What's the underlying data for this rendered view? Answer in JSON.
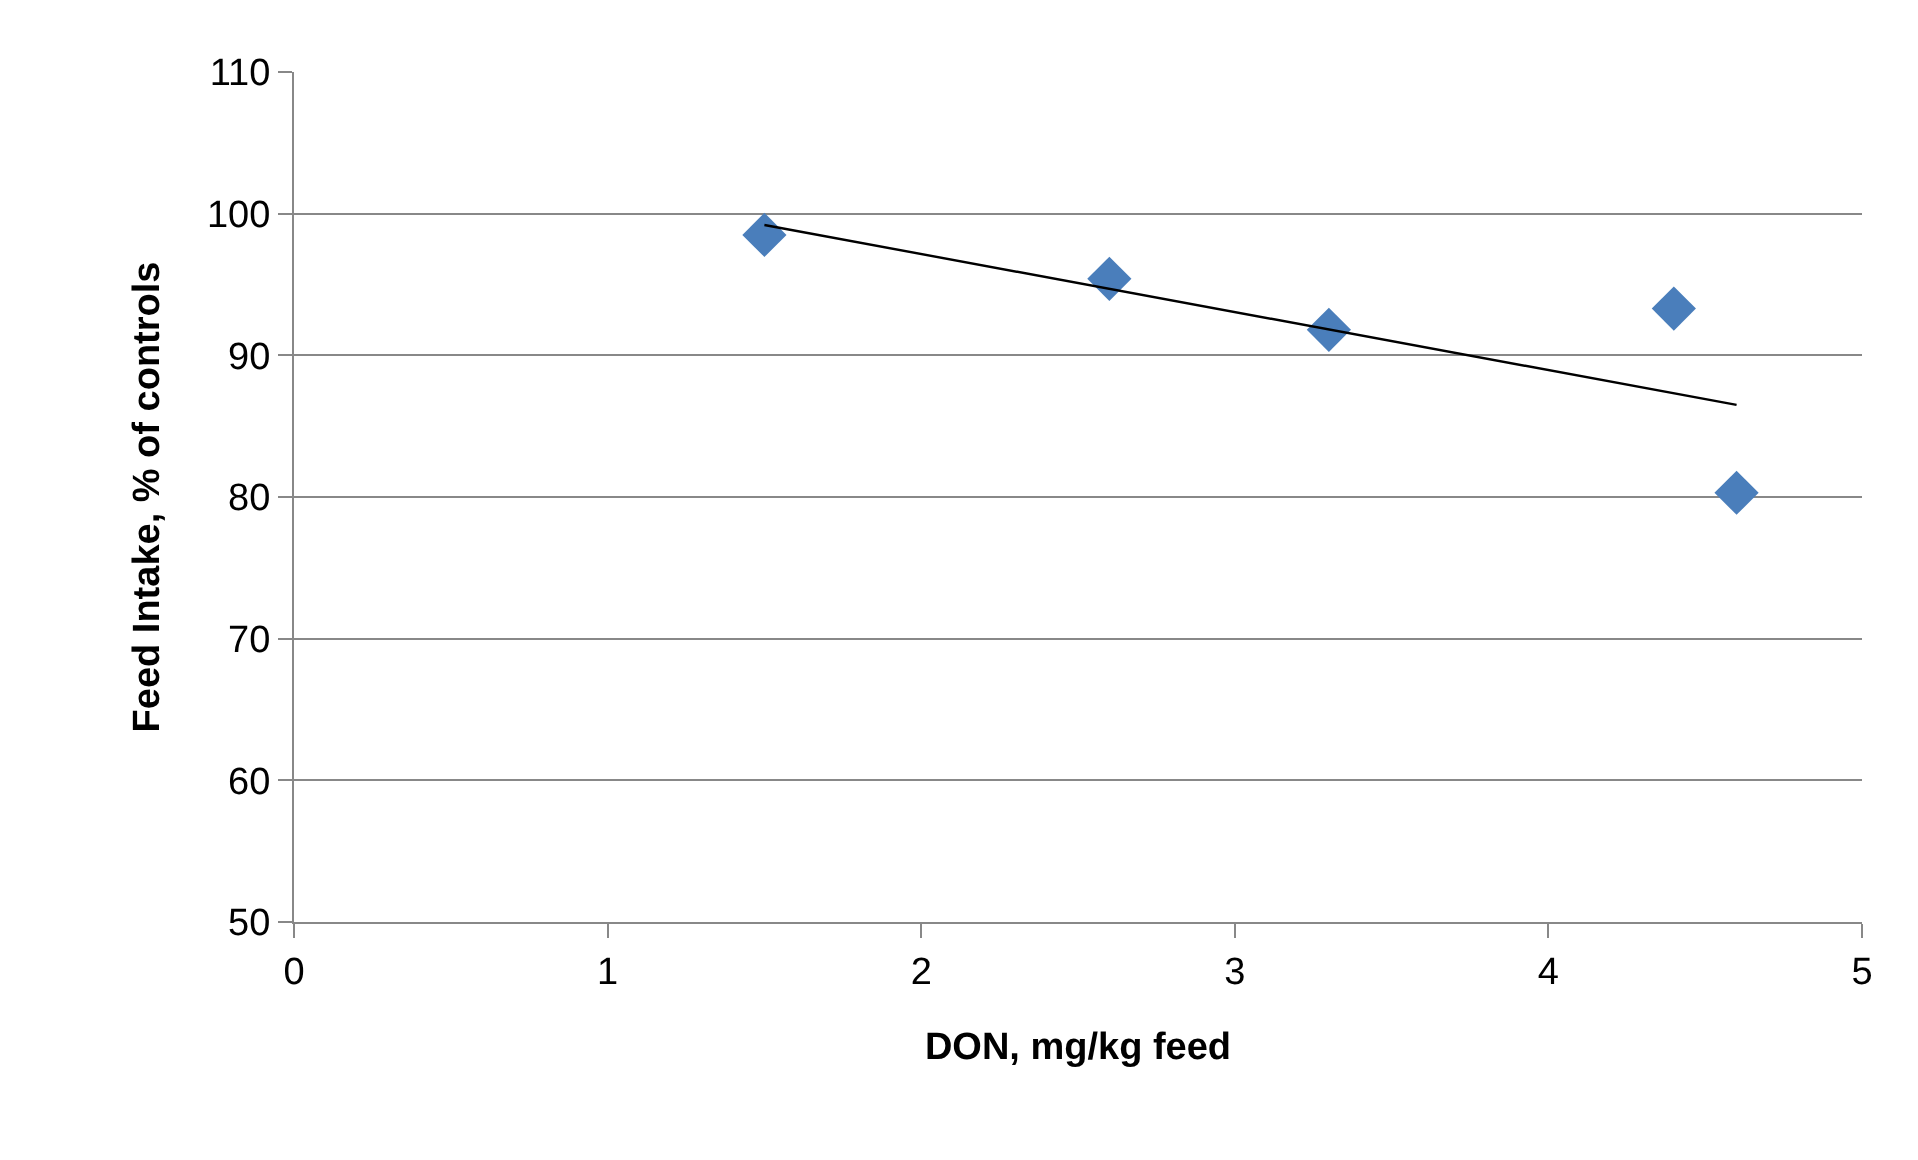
{
  "chart_data": {
    "type": "scatter",
    "xlabel": "DON, mg/kg feed",
    "ylabel": "Feed Intake, % of controls",
    "series": [
      {
        "color": "#4a7ebb",
        "marker": "diamond",
        "x": [
          1.5,
          2.6,
          3.3,
          4.4,
          4.6
        ],
        "values": [
          98.5,
          95.4,
          91.8,
          93.3,
          80.3
        ]
      },
      {
        "type": "line",
        "color": "#000000",
        "marker": "none",
        "line_style": "solid",
        "x": [
          1.5,
          4.6
        ],
        "values": [
          99.2,
          86.5
        ]
      }
    ],
    "xlim": [
      0,
      5
    ],
    "xticks": [
      0,
      1,
      2,
      3,
      4,
      5
    ],
    "ylim": [
      50,
      110
    ],
    "yticks": [
      50,
      60,
      70,
      80,
      90,
      100,
      110
    ],
    "grid": "y"
  }
}
